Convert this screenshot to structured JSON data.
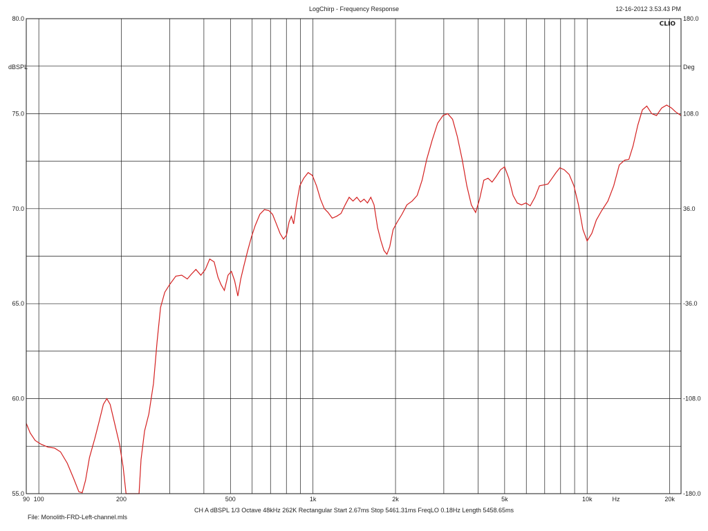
{
  "header": {
    "title": "LogChirp - Frequency Response",
    "timestamp": "12-16-2012 3.53.43 PM",
    "brand": "CLIO"
  },
  "footer": {
    "settings": "CH A   dBSPL   1/3 Octave   48kHz   262K   Rectangular   Start 2.67ms   Stop 5461.31ms   FreqLO 0.18Hz   Length 5458.65ms",
    "file": "File: Monolith-FRD-Left-channel.mls"
  },
  "colors": {
    "trace": "#d42020",
    "grid": "#1a1a1a",
    "background": "#ffffff"
  },
  "chart_data": {
    "type": "line",
    "title": "LogChirp - Frequency Response",
    "x_scale": "log",
    "xlim": [
      90,
      22000
    ],
    "ylim": [
      55,
      80
    ],
    "y2lim": [
      -180,
      180
    ],
    "ylabel": "dBSPL",
    "y2label": "Deg",
    "xunit_label": "Hz",
    "x_tick_labels": [
      {
        "value": 90,
        "label": "90"
      },
      {
        "value": 100,
        "label": "100"
      },
      {
        "value": 200,
        "label": "200"
      },
      {
        "value": 500,
        "label": "500"
      },
      {
        "value": 1000,
        "label": "1k"
      },
      {
        "value": 2000,
        "label": "2k"
      },
      {
        "value": 5000,
        "label": "5k"
      },
      {
        "value": 10000,
        "label": "10k"
      },
      {
        "value": 20000,
        "label": "20k"
      }
    ],
    "y_ticks": [
      {
        "value": 80,
        "label": "80.0"
      },
      {
        "value": 75,
        "label": "75.0"
      },
      {
        "value": 70,
        "label": "70.0"
      },
      {
        "value": 65,
        "label": "65.0"
      },
      {
        "value": 60,
        "label": "60.0"
      },
      {
        "value": 55,
        "label": "55.0"
      }
    ],
    "y2_ticks": [
      {
        "value": 180,
        "label": "180.0"
      },
      {
        "value": 108,
        "label": "108.0"
      },
      {
        "value": 36,
        "label": "36.0"
      },
      {
        "value": -36,
        "label": "-36.0"
      },
      {
        "value": -108,
        "label": "-108.0"
      },
      {
        "value": -180,
        "label": "-180.0"
      }
    ],
    "grid": true,
    "series": [
      {
        "points": [
          [
            90,
            58.7
          ],
          [
            93,
            58.2
          ],
          [
            97,
            57.8
          ],
          [
            102,
            57.6
          ],
          [
            108,
            57.45
          ],
          [
            114,
            57.4
          ],
          [
            120,
            57.2
          ],
          [
            127,
            56.6
          ],
          [
            134,
            55.8
          ],
          [
            140,
            55.1
          ],
          [
            144,
            55.05
          ],
          [
            148,
            55.7
          ],
          [
            153,
            56.9
          ],
          [
            160,
            57.9
          ],
          [
            166,
            58.8
          ],
          [
            172,
            59.7
          ],
          [
            177,
            60.0
          ],
          [
            182,
            59.7
          ],
          [
            189,
            58.7
          ],
          [
            197,
            57.6
          ],
          [
            203,
            56.4
          ],
          [
            208,
            55.0
          ],
          [
            232,
            55.0
          ],
          [
            236,
            56.8
          ],
          [
            243,
            58.3
          ],
          [
            252,
            59.2
          ],
          [
            262,
            60.8
          ],
          [
            270,
            63.0
          ],
          [
            278,
            64.8
          ],
          [
            288,
            65.6
          ],
          [
            300,
            66.0
          ],
          [
            316,
            66.45
          ],
          [
            332,
            66.5
          ],
          [
            348,
            66.3
          ],
          [
            360,
            66.55
          ],
          [
            374,
            66.8
          ],
          [
            390,
            66.5
          ],
          [
            405,
            66.8
          ],
          [
            420,
            67.35
          ],
          [
            436,
            67.2
          ],
          [
            450,
            66.4
          ],
          [
            462,
            66.0
          ],
          [
            475,
            65.7
          ],
          [
            490,
            66.5
          ],
          [
            504,
            66.7
          ],
          [
            518,
            66.2
          ],
          [
            532,
            65.4
          ],
          [
            545,
            66.3
          ],
          [
            560,
            67.0
          ],
          [
            578,
            67.8
          ],
          [
            596,
            68.5
          ],
          [
            615,
            69.1
          ],
          [
            640,
            69.7
          ],
          [
            665,
            69.95
          ],
          [
            690,
            69.9
          ],
          [
            712,
            69.7
          ],
          [
            735,
            69.2
          ],
          [
            758,
            68.7
          ],
          [
            780,
            68.4
          ],
          [
            800,
            68.6
          ],
          [
            818,
            69.3
          ],
          [
            834,
            69.6
          ],
          [
            850,
            69.2
          ],
          [
            870,
            70.2
          ],
          [
            895,
            71.2
          ],
          [
            925,
            71.6
          ],
          [
            960,
            71.9
          ],
          [
            995,
            71.75
          ],
          [
            1030,
            71.2
          ],
          [
            1065,
            70.5
          ],
          [
            1100,
            70.0
          ],
          [
            1135,
            69.8
          ],
          [
            1175,
            69.5
          ],
          [
            1220,
            69.6
          ],
          [
            1265,
            69.75
          ],
          [
            1310,
            70.2
          ],
          [
            1355,
            70.6
          ],
          [
            1400,
            70.4
          ],
          [
            1445,
            70.6
          ],
          [
            1490,
            70.35
          ],
          [
            1535,
            70.5
          ],
          [
            1580,
            70.3
          ],
          [
            1625,
            70.6
          ],
          [
            1670,
            70.2
          ],
          [
            1720,
            69.0
          ],
          [
            1770,
            68.3
          ],
          [
            1815,
            67.8
          ],
          [
            1860,
            67.6
          ],
          [
            1905,
            68.0
          ],
          [
            1960,
            68.9
          ],
          [
            2030,
            69.3
          ],
          [
            2110,
            69.7
          ],
          [
            2200,
            70.2
          ],
          [
            2300,
            70.4
          ],
          [
            2400,
            70.7
          ],
          [
            2500,
            71.5
          ],
          [
            2600,
            72.6
          ],
          [
            2720,
            73.6
          ],
          [
            2850,
            74.5
          ],
          [
            2980,
            74.9
          ],
          [
            3100,
            75.0
          ],
          [
            3230,
            74.7
          ],
          [
            3360,
            73.8
          ],
          [
            3500,
            72.6
          ],
          [
            3640,
            71.2
          ],
          [
            3780,
            70.2
          ],
          [
            3920,
            69.8
          ],
          [
            4050,
            70.5
          ],
          [
            4200,
            71.5
          ],
          [
            4350,
            71.6
          ],
          [
            4500,
            71.4
          ],
          [
            4660,
            71.7
          ],
          [
            4830,
            72.05
          ],
          [
            5000,
            72.2
          ],
          [
            5180,
            71.6
          ],
          [
            5370,
            70.7
          ],
          [
            5560,
            70.3
          ],
          [
            5760,
            70.2
          ],
          [
            5980,
            70.3
          ],
          [
            6200,
            70.15
          ],
          [
            6450,
            70.6
          ],
          [
            6700,
            71.2
          ],
          [
            6950,
            71.25
          ],
          [
            7200,
            71.3
          ],
          [
            7450,
            71.6
          ],
          [
            7700,
            71.9
          ],
          [
            7950,
            72.15
          ],
          [
            8250,
            72.05
          ],
          [
            8600,
            71.8
          ],
          [
            8950,
            71.2
          ],
          [
            9300,
            70.2
          ],
          [
            9650,
            68.9
          ],
          [
            10000,
            68.3
          ],
          [
            10400,
            68.7
          ],
          [
            10800,
            69.4
          ],
          [
            11300,
            69.9
          ],
          [
            11900,
            70.4
          ],
          [
            12500,
            71.2
          ],
          [
            13100,
            72.3
          ],
          [
            13700,
            72.55
          ],
          [
            14200,
            72.6
          ],
          [
            14700,
            73.3
          ],
          [
            15300,
            74.4
          ],
          [
            15900,
            75.2
          ],
          [
            16500,
            75.4
          ],
          [
            17200,
            75.0
          ],
          [
            17900,
            74.9
          ],
          [
            18700,
            75.3
          ],
          [
            19500,
            75.45
          ],
          [
            20300,
            75.3
          ],
          [
            21000,
            75.1
          ],
          [
            22000,
            74.9
          ]
        ]
      }
    ]
  }
}
